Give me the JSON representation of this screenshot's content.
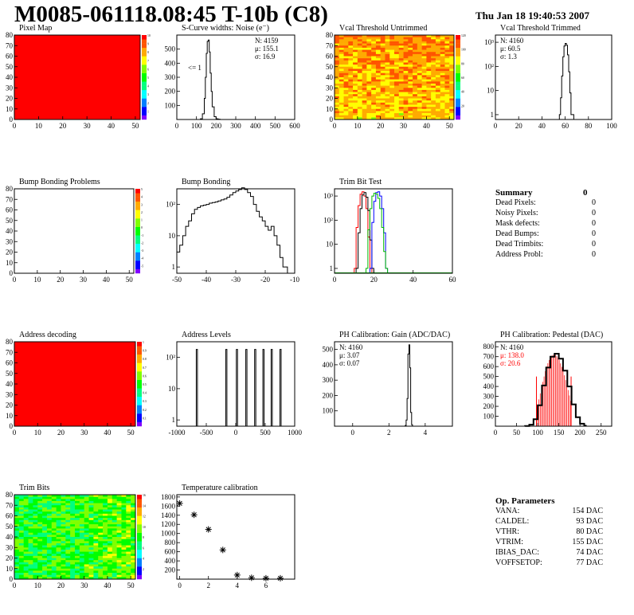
{
  "header": {
    "title": "M0085-061118.08:45 T-10b (C8)",
    "date": "Thu Jan 18 19:40:53 2007"
  },
  "chart_data": [
    {
      "id": "pixel_map",
      "type": "heatmap",
      "title": "Pixel Map",
      "xlim": [
        0,
        52
      ],
      "ylim": [
        0,
        80
      ],
      "xticks": [
        "0",
        "10",
        "20",
        "30",
        "40",
        "50"
      ],
      "yticks": [
        "0",
        "10",
        "20",
        "30",
        "40",
        "50",
        "60",
        "70",
        "80"
      ],
      "fill": "uniform",
      "fill_value": 10,
      "fill_color": "#ff0000",
      "z_scale": {
        "ticks": [
          "1",
          "2",
          "3",
          "4",
          "5",
          "6",
          "7",
          "8",
          "9",
          "10"
        ]
      }
    },
    {
      "id": "scurve",
      "type": "line",
      "title": "S-Curve widths: Noise (e⁻)",
      "xlim": [
        0,
        600
      ],
      "ylim": [
        0,
        600
      ],
      "xticks": [
        "0",
        "100",
        "200",
        "300",
        "400",
        "500",
        "600"
      ],
      "yticks": [
        "100",
        "200",
        "300",
        "400",
        "500"
      ],
      "stats": [
        "N: 4159",
        "μ: 155.1",
        "σ: 16.9"
      ],
      "annotation": "<= 1",
      "x": [
        100,
        120,
        130,
        140,
        145,
        150,
        155,
        160,
        165,
        170,
        175,
        180,
        190,
        200,
        210,
        220
      ],
      "y": [
        0,
        5,
        40,
        150,
        300,
        470,
        555,
        565,
        480,
        330,
        200,
        90,
        20,
        5,
        2,
        0
      ]
    },
    {
      "id": "vcal_untrimmed",
      "type": "heatmap",
      "title": "Vcal Threshold Untrimmed",
      "xlim": [
        0,
        52
      ],
      "ylim": [
        0,
        80
      ],
      "xticks": [
        "0",
        "10",
        "20",
        "30",
        "40",
        "50"
      ],
      "yticks": [
        "0",
        "10",
        "20",
        "30",
        "40",
        "50",
        "60",
        "70",
        "80"
      ],
      "fill": "noise",
      "typical_value": 85,
      "z_scale": {
        "ticks": [
          "20",
          "40",
          "60",
          "80",
          "100",
          "120"
        ]
      }
    },
    {
      "id": "vcal_trimmed",
      "type": "line",
      "title": "Vcal Threshold Trimmed",
      "xlim": [
        0,
        100
      ],
      "ylog": true,
      "xticks": [
        "0",
        "20",
        "40",
        "60",
        "80",
        "100"
      ],
      "yticks": [
        "1",
        "10",
        "10²",
        "10³"
      ],
      "stats": [
        "N: 4160",
        "μ: 60.5",
        "σ:  1.3"
      ],
      "x": [
        55,
        56,
        57,
        58,
        59,
        60,
        61,
        62,
        63,
        64,
        65,
        66
      ],
      "y": [
        1,
        5,
        40,
        250,
        700,
        900,
        750,
        300,
        60,
        8,
        1,
        1
      ]
    },
    {
      "id": "bump_problems",
      "type": "heatmap",
      "title": "Bump Bonding Problems",
      "xlim": [
        0,
        52
      ],
      "ylim": [
        0,
        80
      ],
      "xticks": [
        "0",
        "10",
        "20",
        "30",
        "40",
        "50"
      ],
      "yticks": [
        "0",
        "10",
        "20",
        "30",
        "40",
        "50",
        "60",
        "70",
        "80"
      ],
      "fill": "empty",
      "z_scale": {
        "ticks": [
          "-5",
          "-4",
          "-3",
          "-2",
          "-1",
          "0",
          "1",
          "2",
          "3",
          "4",
          "5"
        ]
      }
    },
    {
      "id": "bump_bonding",
      "type": "line",
      "title": "Bump Bonding",
      "xlim": [
        -50,
        -10
      ],
      "ylog": true,
      "xticks": [
        "-50",
        "-40",
        "-30",
        "-20",
        "-10"
      ],
      "yticks": [
        "1",
        "10",
        "10²"
      ],
      "x": [
        -50,
        -49,
        -48,
        -47,
        -46,
        -45,
        -44,
        -43,
        -42,
        -41,
        -40,
        -39,
        -38,
        -37,
        -36,
        -35,
        -34,
        -33,
        -32,
        -31,
        -30,
        -29,
        -28,
        -27,
        -26,
        -25,
        -24,
        -23,
        -22,
        -21,
        -20,
        -19,
        -18,
        -17,
        -16,
        -15,
        -14,
        -13
      ],
      "y": [
        3,
        5,
        10,
        20,
        30,
        50,
        70,
        80,
        90,
        95,
        100,
        110,
        115,
        120,
        130,
        140,
        150,
        170,
        200,
        240,
        270,
        300,
        340,
        300,
        240,
        180,
        100,
        60,
        40,
        30,
        20,
        15,
        20,
        10,
        5,
        2,
        1,
        1
      ]
    },
    {
      "id": "trim_bit_test",
      "type": "line",
      "title": "Trim Bit Test",
      "xlim": [
        0,
        60
      ],
      "ylog": true,
      "xticks": [
        "0",
        "20",
        "40",
        "60"
      ],
      "yticks": [
        "1",
        "10",
        "10²",
        "10³"
      ],
      "series": [
        {
          "color": "#ff0000",
          "x": [
            10,
            11,
            12,
            13,
            14,
            15,
            16,
            17,
            18
          ],
          "y": [
            1,
            50,
            400,
            1200,
            1500,
            1000,
            300,
            20,
            1
          ]
        },
        {
          "color": "#000000",
          "x": [
            11,
            12,
            13,
            14,
            15,
            16,
            17,
            18,
            19
          ],
          "y": [
            1,
            30,
            300,
            1100,
            1400,
            900,
            250,
            15,
            1
          ]
        },
        {
          "color": "#0000ff",
          "x": [
            18,
            19,
            20,
            21,
            22,
            23,
            24,
            25,
            26
          ],
          "y": [
            1,
            80,
            600,
            1400,
            1500,
            1000,
            300,
            30,
            1
          ]
        },
        {
          "color": "#00bb00",
          "x": [
            16,
            17,
            18,
            19,
            20,
            21,
            22,
            23,
            24,
            25,
            26
          ],
          "y": [
            1,
            40,
            300,
            1000,
            1300,
            1200,
            800,
            300,
            50,
            5,
            1
          ]
        }
      ]
    },
    {
      "id": "address_decoding",
      "type": "heatmap",
      "title": "Address decoding",
      "xlim": [
        0,
        52
      ],
      "ylim": [
        0,
        80
      ],
      "xticks": [
        "0",
        "10",
        "20",
        "30",
        "40",
        "50"
      ],
      "yticks": [
        "0",
        "10",
        "20",
        "30",
        "40",
        "50",
        "60",
        "70",
        "80"
      ],
      "fill": "uniform",
      "fill_value": 1.0,
      "fill_color": "#ff0000",
      "z_scale": {
        "ticks": [
          "0.1",
          "0.2",
          "0.3",
          "0.4",
          "0.5",
          "0.6",
          "0.7",
          "0.8",
          "0.9",
          "1"
        ]
      }
    },
    {
      "id": "address_levels",
      "type": "line",
      "title": "Address Levels",
      "xlim": [
        -1000,
        1000
      ],
      "ylog": true,
      "xticks": [
        "-1000",
        "-500",
        "0",
        "500",
        "1000"
      ],
      "yticks": [
        "1",
        "10",
        "10²"
      ],
      "peaks": [
        -660,
        -160,
        20,
        180,
        330,
        470,
        610,
        760
      ],
      "peak_value": 180
    },
    {
      "id": "ph_gain",
      "type": "line",
      "title": "PH Calibration: Gain (ADC/DAC)",
      "xlim": [
        -1,
        5.5
      ],
      "ylim": [
        0,
        550
      ],
      "xticks": [
        "0",
        "2",
        "4"
      ],
      "yticks": [
        "100",
        "200",
        "300",
        "400",
        "500"
      ],
      "stats": [
        "N: 4160",
        "μ: 3.07",
        "σ: 0.07"
      ],
      "x": [
        2.85,
        2.9,
        2.95,
        3.0,
        3.05,
        3.1,
        3.15,
        3.2,
        3.25,
        3.3
      ],
      "y": [
        0,
        5,
        40,
        180,
        470,
        530,
        380,
        90,
        10,
        0
      ]
    },
    {
      "id": "ph_pedestal",
      "type": "line",
      "title": "PH Calibration: Pedestal (DAC)",
      "xlim": [
        0,
        275
      ],
      "ylim": [
        0,
        850
      ],
      "xticks": [
        "0",
        "50",
        "100",
        "150",
        "200",
        "250"
      ],
      "yticks": [
        "100",
        "200",
        "300",
        "400",
        "500",
        "600",
        "700",
        "800"
      ],
      "stats": [
        "N: 4160",
        "μ: 138.0",
        "σ: 20.6"
      ],
      "stats_colors": [
        "#000000",
        "#ff0000",
        "#ff0000"
      ],
      "cut_lines": [
        97,
        179
      ],
      "x": [
        70,
        80,
        90,
        100,
        110,
        120,
        130,
        140,
        150,
        160,
        170,
        180,
        190,
        200,
        210
      ],
      "y": [
        2,
        15,
        70,
        210,
        410,
        590,
        700,
        730,
        680,
        560,
        400,
        220,
        90,
        25,
        5
      ]
    },
    {
      "id": "trim_bits",
      "type": "heatmap",
      "title": "Trim Bits",
      "xlim": [
        0,
        52
      ],
      "ylim": [
        0,
        80
      ],
      "xticks": [
        "0",
        "10",
        "20",
        "30",
        "40",
        "50"
      ],
      "yticks": [
        "0",
        "10",
        "20",
        "30",
        "40",
        "50",
        "60",
        "70",
        "80"
      ],
      "fill": "noise",
      "typical_value": 8,
      "z_scale": {
        "ticks": [
          "2",
          "4",
          "6",
          "8",
          "10",
          "12",
          "14",
          "16"
        ]
      }
    },
    {
      "id": "temperature_calibration",
      "type": "scatter",
      "title": "Temperature calibration",
      "xlim": [
        -0.2,
        8
      ],
      "ylim": [
        0,
        1850
      ],
      "xticks": [
        "0",
        "2",
        "4",
        "6"
      ],
      "yticks": [
        "200",
        "400",
        "600",
        "800",
        "1000",
        "1200",
        "1400",
        "1600",
        "1800"
      ],
      "marker": "asterisk",
      "x": [
        0,
        1,
        2,
        3,
        4,
        5,
        6,
        7
      ],
      "y": [
        1660,
        1410,
        1090,
        640,
        90,
        30,
        20,
        20
      ]
    }
  ],
  "summary": {
    "title": "Summary",
    "value": "0",
    "rows": [
      {
        "label": "Dead Pixels:",
        "value": "0"
      },
      {
        "label": "Noisy Pixels:",
        "value": "0"
      },
      {
        "label": "Mask defects:",
        "value": "0"
      },
      {
        "label": "Dead Bumps:",
        "value": "0"
      },
      {
        "label": "Dead Trimbits:",
        "value": "0"
      },
      {
        "label": "Address Probl:",
        "value": "0"
      }
    ]
  },
  "op_parameters": {
    "title": "Op. Parameters",
    "rows": [
      {
        "label": "VANA:",
        "value": "154 DAC"
      },
      {
        "label": "CALDEL:",
        "value": "93 DAC"
      },
      {
        "label": "VTHR:",
        "value": "80 DAC"
      },
      {
        "label": "VTRIM:",
        "value": "155 DAC"
      },
      {
        "label": "IBIAS_DAC:",
        "value": "74 DAC"
      },
      {
        "label": "VOFFSETOP:",
        "value": "77 DAC"
      }
    ]
  }
}
